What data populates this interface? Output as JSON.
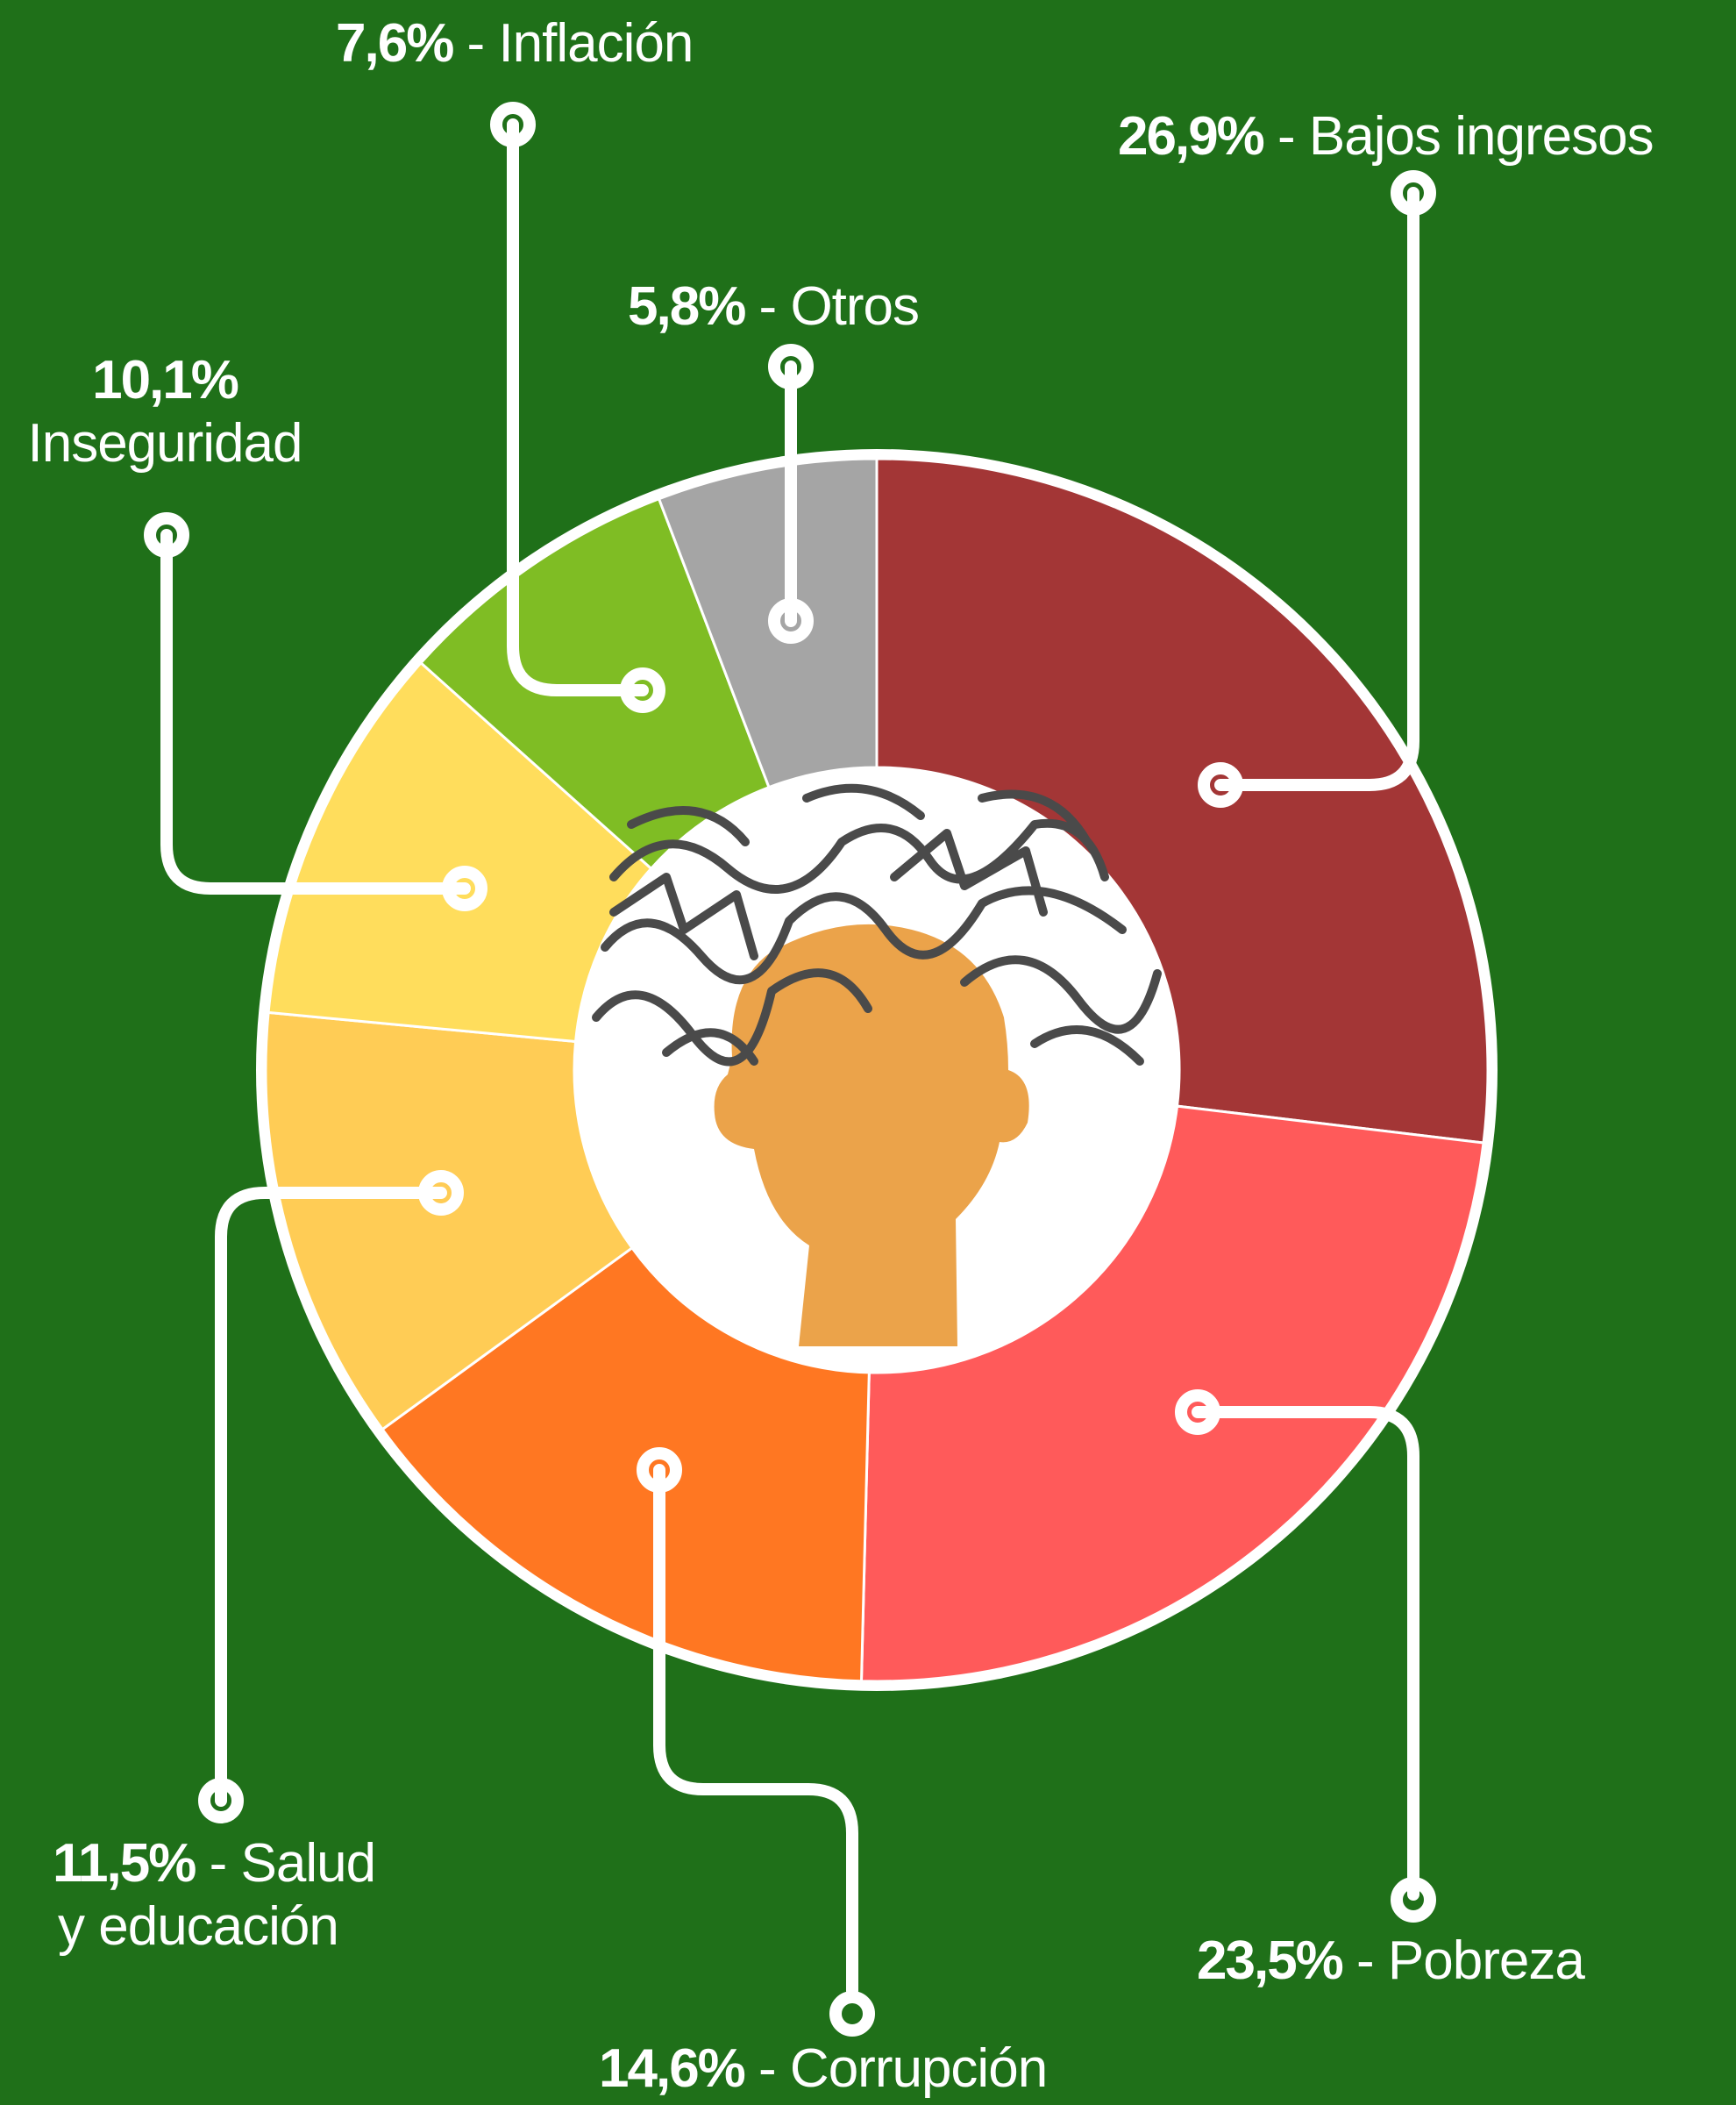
{
  "chart_data": {
    "type": "pie",
    "donut": true,
    "legend": "callout-labels",
    "slices": [
      {
        "label": "Bajos ingresos",
        "value": 26.9,
        "value_label": "26,9%",
        "color": "#a33636"
      },
      {
        "label": "Pobreza",
        "value": 23.5,
        "value_label": "23,5%",
        "color": "#ff5a5a"
      },
      {
        "label": "Corrupción",
        "value": 14.6,
        "value_label": "14,6%",
        "color": "#ff7722"
      },
      {
        "label": "Salud y educación",
        "value": 11.5,
        "value_label": "11,5%",
        "color": "#ffcc55"
      },
      {
        "label": "Inseguridad",
        "value": 10.1,
        "value_label": "10,1%",
        "color": "#ffdd5c"
      },
      {
        "label": "Inflación",
        "value": 7.6,
        "value_label": "7,6%",
        "color": "#7fbd24"
      },
      {
        "label": "Otros",
        "value": 5.8,
        "value_label": "5,8%",
        "color": "#a5a5a5"
      }
    ],
    "center_icon": "stressed-head-icon"
  },
  "labels": {
    "bajos": {
      "pct": "26,9%",
      "sep": " - ",
      "name": "Bajos ingresos"
    },
    "pobreza": {
      "pct": "23,5%",
      "sep": " - ",
      "name": "Pobreza"
    },
    "corrup": {
      "pct": "14,6%",
      "sep": " - ",
      "name": "Corrupción"
    },
    "salud": {
      "pct": "11,5%",
      "sep": " - ",
      "name": "Salud",
      "name2": "y educación"
    },
    "inseg": {
      "pct": "10,1%",
      "name": "Inseguridad"
    },
    "infla": {
      "pct": "7,6%",
      "sep": " - ",
      "name": "Inflación"
    },
    "otros": {
      "pct": "5,8%",
      "sep": " - ",
      "name": "Otros"
    }
  }
}
